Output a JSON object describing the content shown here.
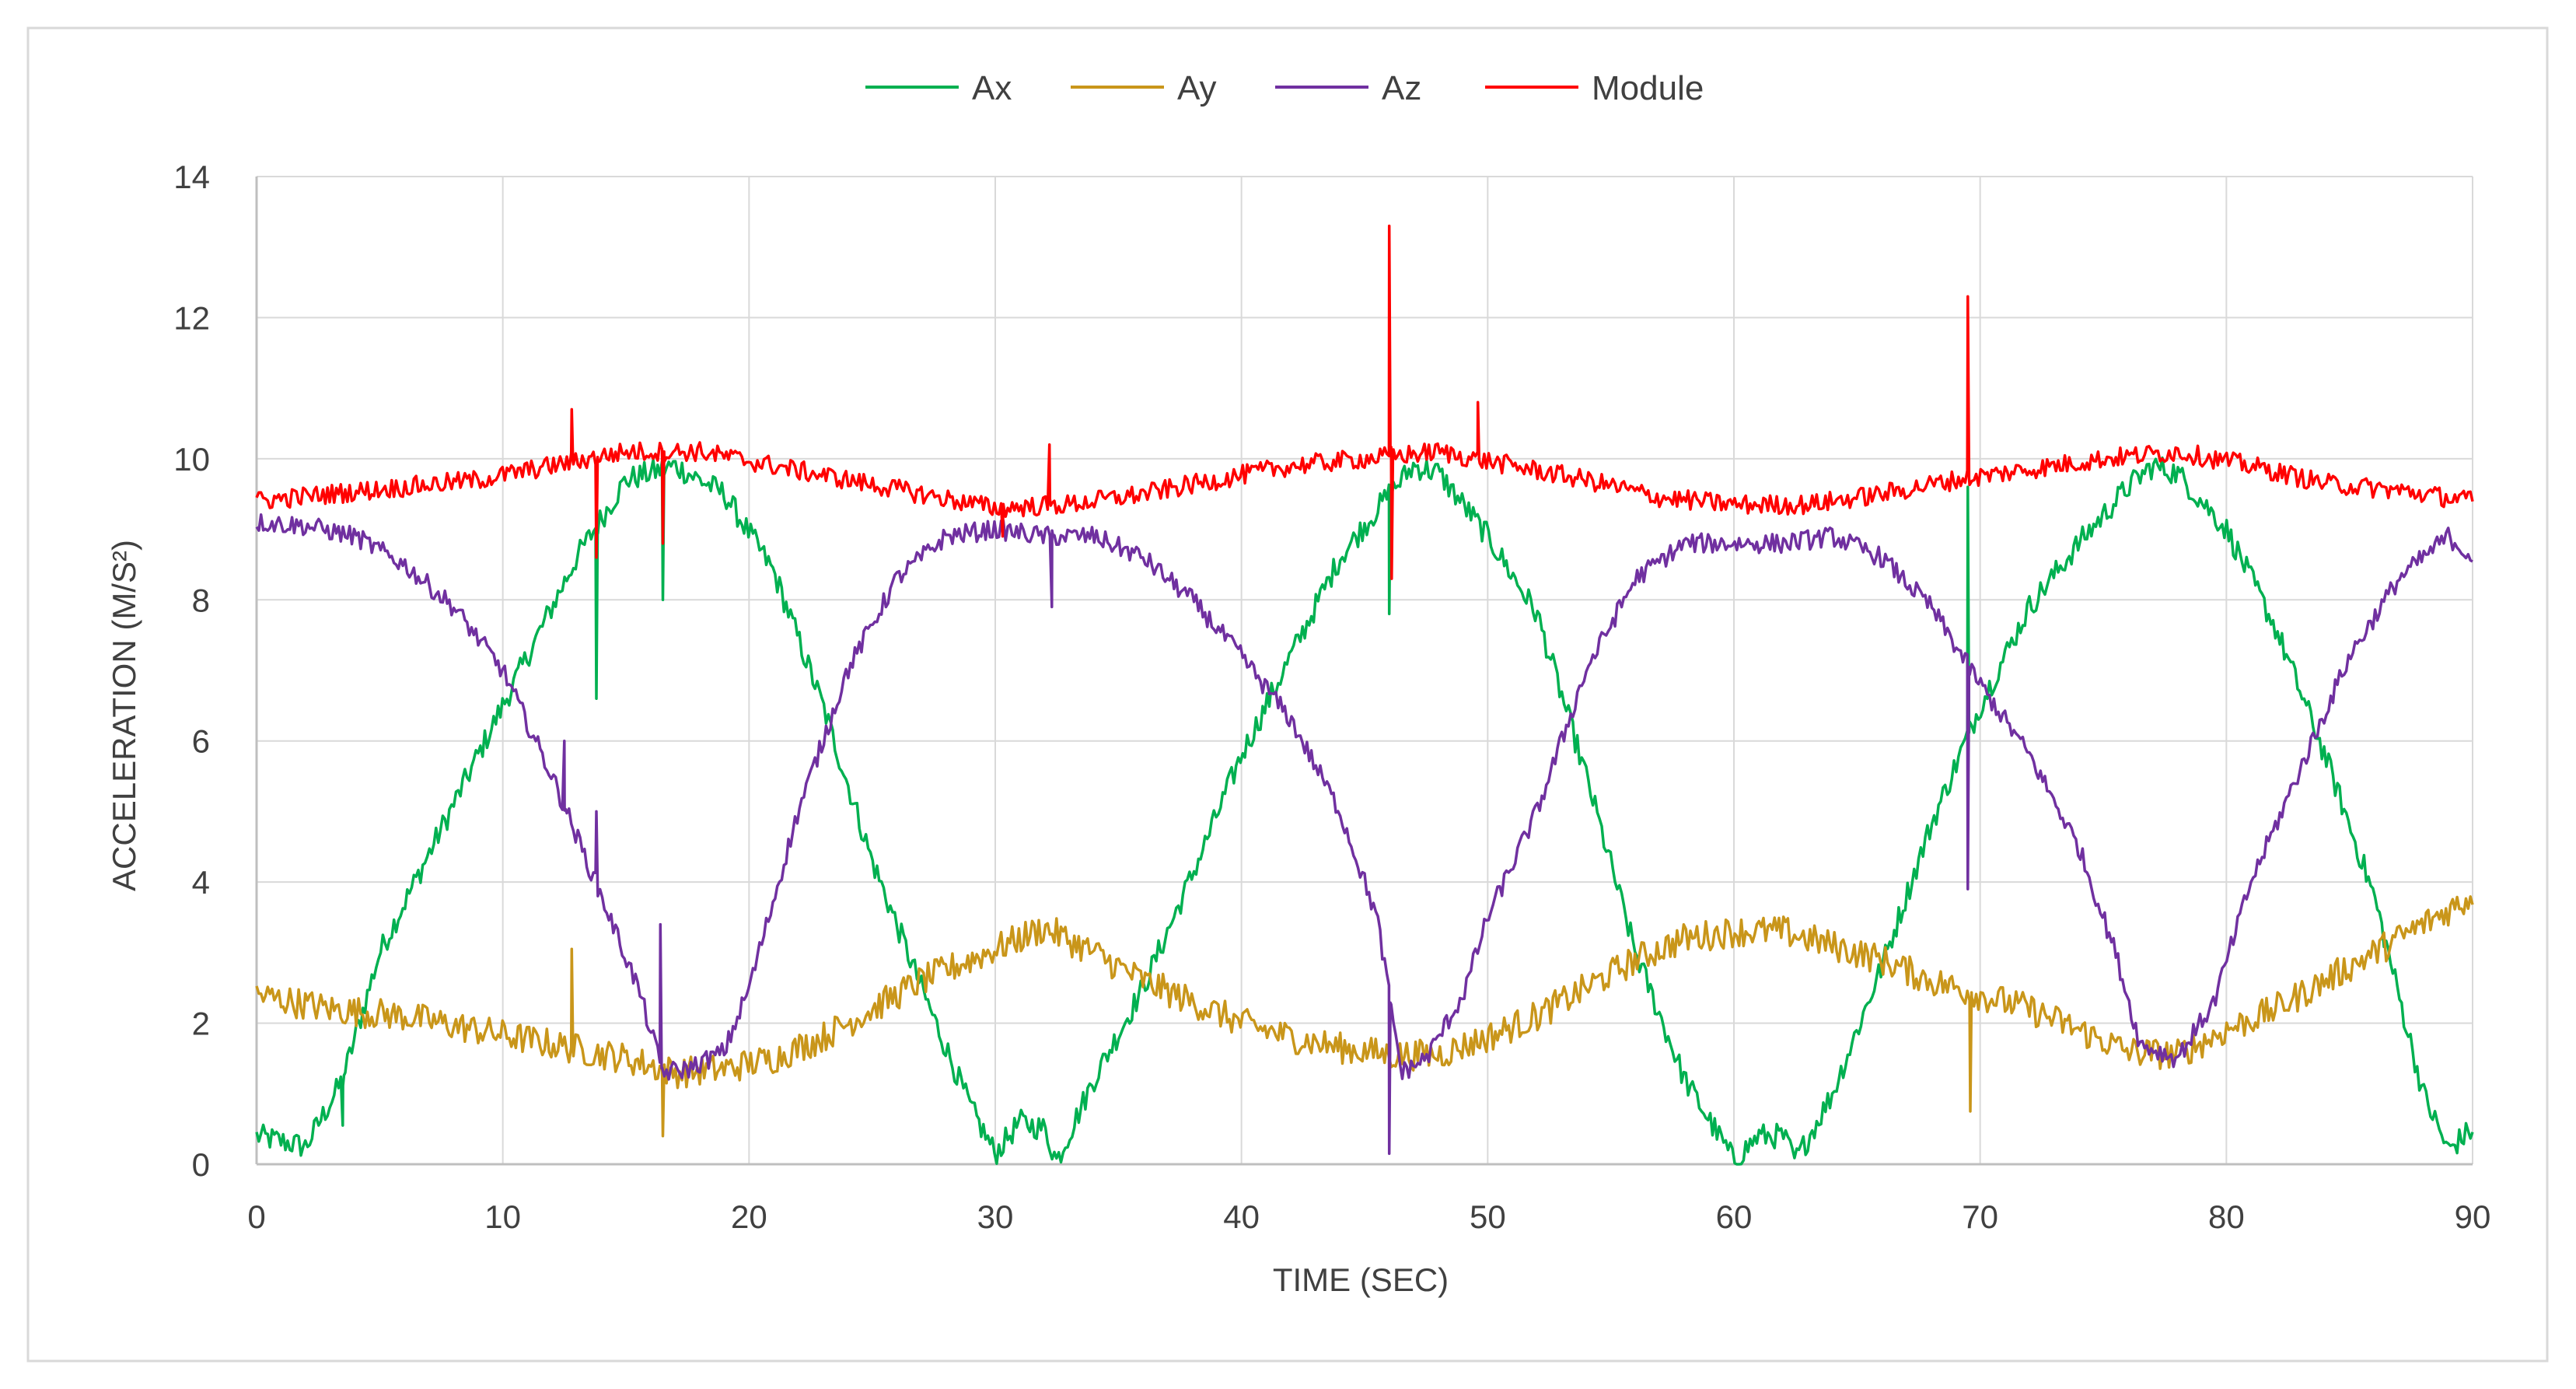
{
  "chart_data": {
    "type": "line",
    "title": "",
    "xlabel": "TIME (SEC)",
    "ylabel": "ACCELERATION (M/S²)",
    "xlim": [
      0,
      90
    ],
    "ylim": [
      0,
      14
    ],
    "x_ticks": [
      "0",
      "10",
      "20",
      "30",
      "40",
      "50",
      "60",
      "70",
      "80",
      "90"
    ],
    "y_ticks": [
      "0",
      "2",
      "4",
      "6",
      "8",
      "10",
      "12",
      "14"
    ],
    "grid": true,
    "legend_position": "top-center",
    "series": [
      {
        "name": "Ax",
        "color": "#00b050",
        "points": [
          [
            0,
            0.4
          ],
          [
            2,
            0.25
          ],
          [
            3.5,
            1.2
          ],
          [
            5,
            3.0
          ],
          [
            7,
            4.4
          ],
          [
            9,
            5.8
          ],
          [
            11,
            7.2
          ],
          [
            13,
            8.6
          ],
          [
            15,
            9.7
          ],
          [
            17,
            9.9
          ],
          [
            19,
            9.5
          ],
          [
            21,
            8.4
          ],
          [
            23,
            6.5
          ],
          [
            25,
            4.3
          ],
          [
            27,
            2.5
          ],
          [
            29,
            0.8
          ],
          [
            30,
            0.15
          ],
          [
            31,
            0.6
          ],
          [
            32,
            0.5
          ],
          [
            32.5,
            0.05
          ],
          [
            34,
            1.2
          ],
          [
            36,
            2.5
          ],
          [
            38,
            4.1
          ],
          [
            40,
            5.8
          ],
          [
            42,
            7.2
          ],
          [
            44,
            8.6
          ],
          [
            46,
            9.5
          ],
          [
            47,
            9.9
          ],
          [
            48,
            9.8
          ],
          [
            50,
            8.9
          ],
          [
            52,
            7.8
          ],
          [
            54,
            5.5
          ],
          [
            56,
            3.0
          ],
          [
            58,
            1.2
          ],
          [
            60,
            0.05
          ],
          [
            61,
            0.4
          ],
          [
            62,
            0.4
          ],
          [
            62.5,
            0.05
          ],
          [
            64,
            1.0
          ],
          [
            66,
            2.8
          ],
          [
            68,
            4.8
          ],
          [
            70,
            6.5
          ],
          [
            72,
            7.9
          ],
          [
            74,
            8.8
          ],
          [
            76,
            9.6
          ],
          [
            77,
            9.9
          ],
          [
            78,
            9.8
          ],
          [
            80,
            9.0
          ],
          [
            82,
            7.6
          ],
          [
            84,
            5.8
          ],
          [
            86,
            3.8
          ],
          [
            88,
            1.0
          ],
          [
            89,
            0.2
          ],
          [
            90,
            0.5
          ]
        ],
        "spikes": [
          [
            13.8,
            6.6
          ],
          [
            16.5,
            8.0
          ],
          [
            46,
            7.8
          ],
          [
            69.5,
            9.6
          ],
          [
            3.5,
            0.55
          ]
        ]
      },
      {
        "name": "Ay",
        "color": "#c9961a",
        "points": [
          [
            0,
            2.4
          ],
          [
            3,
            2.2
          ],
          [
            6,
            2.1
          ],
          [
            9,
            1.9
          ],
          [
            12,
            1.7
          ],
          [
            15,
            1.5
          ],
          [
            17,
            1.3
          ],
          [
            19,
            1.35
          ],
          [
            21,
            1.5
          ],
          [
            23,
            1.8
          ],
          [
            25,
            2.2
          ],
          [
            27,
            2.6
          ],
          [
            29,
            2.9
          ],
          [
            31,
            3.2
          ],
          [
            32,
            3.35
          ],
          [
            34,
            3.0
          ],
          [
            36,
            2.6
          ],
          [
            38,
            2.3
          ],
          [
            40,
            2.0
          ],
          [
            42,
            1.8
          ],
          [
            44,
            1.65
          ],
          [
            46,
            1.55
          ],
          [
            48,
            1.55
          ],
          [
            50,
            1.8
          ],
          [
            52,
            2.1
          ],
          [
            54,
            2.5
          ],
          [
            56,
            2.9
          ],
          [
            58,
            3.2
          ],
          [
            60,
            3.3
          ],
          [
            62,
            3.3
          ],
          [
            64,
            3.1
          ],
          [
            66,
            2.9
          ],
          [
            68,
            2.6
          ],
          [
            70,
            2.4
          ],
          [
            72,
            2.2
          ],
          [
            74,
            1.9
          ],
          [
            76,
            1.6
          ],
          [
            78,
            1.55
          ],
          [
            80,
            1.9
          ],
          [
            82,
            2.2
          ],
          [
            84,
            2.6
          ],
          [
            86,
            3.0
          ],
          [
            88,
            3.4
          ],
          [
            90,
            3.8
          ]
        ],
        "spikes": [
          [
            12.8,
            3.05
          ],
          [
            16.5,
            0.4
          ],
          [
            69.6,
            0.75
          ]
        ]
      },
      {
        "name": "Az",
        "color": "#7030a0",
        "points": [
          [
            0,
            9.1
          ],
          [
            2,
            9.05
          ],
          [
            4,
            8.9
          ],
          [
            6,
            8.5
          ],
          [
            8,
            7.9
          ],
          [
            10,
            7.0
          ],
          [
            12,
            5.5
          ],
          [
            14,
            3.8
          ],
          [
            15.5,
            2.5
          ],
          [
            16.5,
            1.3
          ],
          [
            17.5,
            1.35
          ],
          [
            19,
            1.6
          ],
          [
            20,
            2.5
          ],
          [
            22,
            5.0
          ],
          [
            24,
            7.0
          ],
          [
            26,
            8.3
          ],
          [
            28,
            8.9
          ],
          [
            30,
            9.0
          ],
          [
            32,
            8.9
          ],
          [
            34,
            8.9
          ],
          [
            36,
            8.6
          ],
          [
            38,
            8.0
          ],
          [
            40,
            7.2
          ],
          [
            42,
            6.3
          ],
          [
            44,
            5.0
          ],
          [
            45.5,
            3.5
          ],
          [
            46.5,
            1.3
          ],
          [
            47.5,
            1.5
          ],
          [
            49,
            2.4
          ],
          [
            50,
            3.5
          ],
          [
            52,
            5.0
          ],
          [
            54,
            7.0
          ],
          [
            56,
            8.3
          ],
          [
            58,
            8.8
          ],
          [
            60,
            8.8
          ],
          [
            62,
            8.8
          ],
          [
            64,
            8.9
          ],
          [
            66,
            8.6
          ],
          [
            68,
            7.9
          ],
          [
            70,
            6.8
          ],
          [
            72,
            5.8
          ],
          [
            74,
            4.5
          ],
          [
            75.5,
            3.0
          ],
          [
            76.5,
            1.7
          ],
          [
            78,
            1.5
          ],
          [
            79.5,
            2.3
          ],
          [
            81,
            4.0
          ],
          [
            83,
            5.6
          ],
          [
            85,
            7.2
          ],
          [
            87,
            8.3
          ],
          [
            89,
            8.9
          ],
          [
            90,
            8.6
          ]
        ],
        "spikes": [
          [
            12.5,
            6.0
          ],
          [
            13.8,
            5.0
          ],
          [
            16.4,
            3.4
          ],
          [
            32.3,
            7.9
          ],
          [
            46,
            0.15
          ],
          [
            69.5,
            3.9
          ]
        ]
      },
      {
        "name": "Module",
        "color": "#ff0000",
        "points": [
          [
            0,
            9.4
          ],
          [
            3,
            9.5
          ],
          [
            6,
            9.6
          ],
          [
            9,
            9.7
          ],
          [
            12,
            9.9
          ],
          [
            15,
            10.1
          ],
          [
            18,
            10.1
          ],
          [
            21,
            9.9
          ],
          [
            24,
            9.7
          ],
          [
            27,
            9.5
          ],
          [
            30,
            9.3
          ],
          [
            33,
            9.35
          ],
          [
            36,
            9.5
          ],
          [
            39,
            9.7
          ],
          [
            42,
            9.9
          ],
          [
            45,
            10.0
          ],
          [
            48,
            10.1
          ],
          [
            51,
            9.9
          ],
          [
            54,
            9.7
          ],
          [
            57,
            9.45
          ],
          [
            60,
            9.35
          ],
          [
            63,
            9.35
          ],
          [
            66,
            9.5
          ],
          [
            69,
            9.7
          ],
          [
            72,
            9.85
          ],
          [
            75,
            10.0
          ],
          [
            78,
            10.1
          ],
          [
            81,
            9.9
          ],
          [
            84,
            9.65
          ],
          [
            87,
            9.55
          ],
          [
            90,
            9.4
          ]
        ],
        "spikes": [
          [
            12.8,
            10.7
          ],
          [
            13.8,
            8.6
          ],
          [
            16.5,
            8.8
          ],
          [
            30.3,
            8.9
          ],
          [
            32.2,
            10.2
          ],
          [
            46,
            13.3
          ],
          [
            46.1,
            8.3
          ],
          [
            49.6,
            10.8
          ],
          [
            69.5,
            12.3
          ]
        ]
      }
    ]
  }
}
